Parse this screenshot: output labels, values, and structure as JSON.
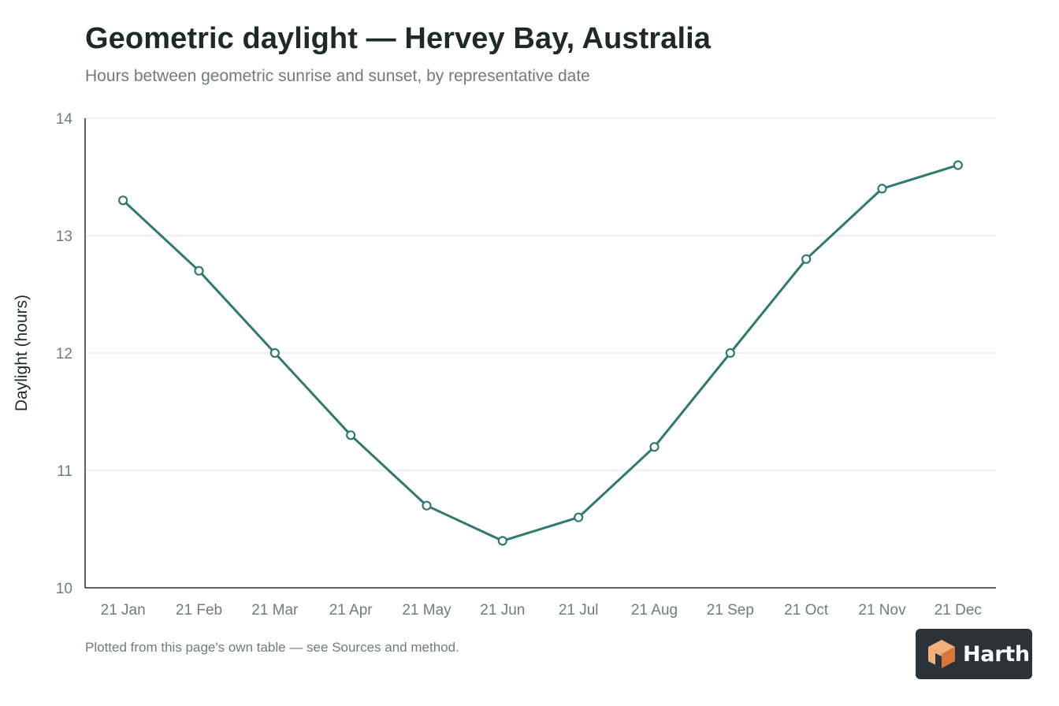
{
  "header": {
    "title": "Geometric daylight — Hervey Bay, Australia",
    "subtitle": "Hours between geometric sunrise and sunset, by representative date"
  },
  "footnote": "Plotted from this page's own table — see Sources and method.",
  "logo": {
    "text": "Harth",
    "icon": "cube-icon",
    "colors": {
      "background": "#2b3238",
      "light": "#f2b07a",
      "dark": "#d9773b"
    }
  },
  "chart_data": {
    "type": "line",
    "title": "Geometric daylight — Hervey Bay, Australia",
    "subtitle": "Hours between geometric sunrise and sunset, by representative date",
    "xlabel": "",
    "ylabel": "Daylight (hours)",
    "categories": [
      "21 Jan",
      "21 Feb",
      "21 Mar",
      "21 Apr",
      "21 May",
      "21 Jun",
      "21 Jul",
      "21 Aug",
      "21 Sep",
      "21 Oct",
      "21 Nov",
      "21 Dec"
    ],
    "series": [
      {
        "values": [
          13.3,
          12.7,
          12.0,
          11.3,
          10.7,
          10.4,
          10.6,
          11.2,
          12.0,
          12.8,
          13.4,
          13.6
        ]
      }
    ],
    "ylim": [
      10,
      14
    ],
    "yticks": [
      10,
      11,
      12,
      13,
      14
    ],
    "grid": true,
    "legend": "none",
    "colors": {
      "line": "#2e7a6e",
      "grid": "#e6e9e8",
      "axis": "#2b2f2e"
    }
  }
}
